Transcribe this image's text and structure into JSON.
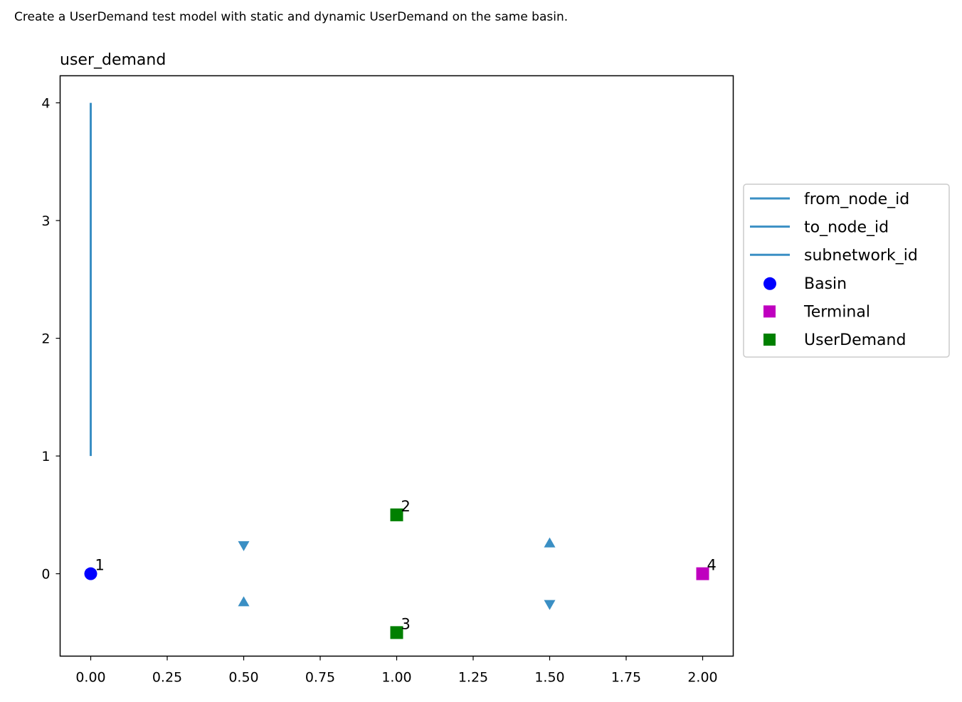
{
  "caption": "Create a UserDemand test model with static and dynamic UserDemand on the same basin.",
  "chart_data": {
    "type": "scatter",
    "title": "user_demand",
    "xlabel": "",
    "ylabel": "",
    "xlim": [
      -0.1,
      2.1
    ],
    "ylim": [
      -0.7,
      4.23
    ],
    "xticks": [
      0.0,
      0.25,
      0.5,
      0.75,
      1.0,
      1.25,
      1.5,
      1.75,
      2.0
    ],
    "xtick_labels": [
      "0.00",
      "0.25",
      "0.50",
      "0.75",
      "1.00",
      "1.25",
      "1.50",
      "1.75",
      "2.00"
    ],
    "yticks": [
      0,
      1,
      2,
      3,
      4
    ],
    "ytick_labels": [
      "0",
      "1",
      "2",
      "3",
      "4"
    ],
    "grid": false,
    "legend_position": "center-right (outside plot)",
    "colors": {
      "edge": "#3a8fc4",
      "basin": "#0000ff",
      "terminal": "#bf00bf",
      "user_demand": "#008000"
    },
    "legend": [
      {
        "label": "from_node_id",
        "kind": "line",
        "color": "#3a8fc4"
      },
      {
        "label": "to_node_id",
        "kind": "line",
        "color": "#3a8fc4"
      },
      {
        "label": "subnetwork_id",
        "kind": "line",
        "color": "#3a8fc4"
      },
      {
        "label": "Basin",
        "kind": "circle",
        "color": "#0000ff"
      },
      {
        "label": "Terminal",
        "kind": "square",
        "color": "#bf00bf"
      },
      {
        "label": "UserDemand",
        "kind": "square",
        "color": "#008000"
      }
    ],
    "lines": [
      {
        "x": [
          0,
          0
        ],
        "y": [
          1,
          4
        ],
        "color": "#3a8fc4"
      }
    ],
    "nodes": [
      {
        "series": "Basin",
        "id": "1",
        "x": 0,
        "y": 0,
        "shape": "circle",
        "color": "#0000ff"
      },
      {
        "series": "UserDemand",
        "id": "2",
        "x": 1,
        "y": 0.5,
        "shape": "square",
        "color": "#008000"
      },
      {
        "series": "UserDemand",
        "id": "3",
        "x": 1,
        "y": -0.5,
        "shape": "square",
        "color": "#008000"
      },
      {
        "series": "Terminal",
        "id": "4",
        "x": 2,
        "y": 0,
        "shape": "square",
        "color": "#bf00bf"
      }
    ],
    "edge_markers": [
      {
        "x": 0.5,
        "y": 0.24,
        "shape": "triangle-down"
      },
      {
        "x": 0.5,
        "y": -0.24,
        "shape": "triangle-up"
      },
      {
        "x": 1.5,
        "y": 0.26,
        "shape": "triangle-up"
      },
      {
        "x": 1.5,
        "y": -0.26,
        "shape": "triangle-down"
      }
    ]
  }
}
